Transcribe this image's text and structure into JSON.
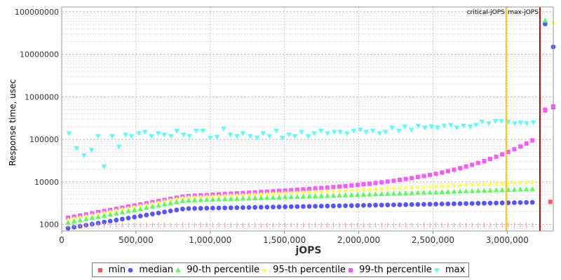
{
  "chart_data": {
    "type": "scatter",
    "title": "",
    "xlabel": "jOPS",
    "ylabel": "Response time, usec",
    "y_scale": "log",
    "xlim": [
      0,
      3310000
    ],
    "ylim": [
      700,
      130000000
    ],
    "x_ticks": [
      {
        "value": 0,
        "label": "0"
      },
      {
        "value": 500000,
        "label": "500,000"
      },
      {
        "value": 1000000,
        "label": "1,000,000"
      },
      {
        "value": 1500000,
        "label": "1,500,000"
      },
      {
        "value": 2000000,
        "label": "2,000,000"
      },
      {
        "value": 2500000,
        "label": "2,500,000"
      },
      {
        "value": 3000000,
        "label": "3,000,000"
      }
    ],
    "y_ticks": [
      {
        "value": 1000,
        "label": "1000"
      },
      {
        "value": 10000,
        "label": "10000"
      },
      {
        "value": 100000,
        "label": "100000"
      },
      {
        "value": 1000000,
        "label": "1000000"
      },
      {
        "value": 10000000,
        "label": "10000000"
      },
      {
        "value": 100000000,
        "label": "100000000"
      }
    ],
    "grid": true,
    "legend_position": "bottom",
    "markers": [
      {
        "label": "critical-jOPS",
        "x": 2993000,
        "color": "#ffc800"
      },
      {
        "label": "max-jOPS",
        "x": 3220000,
        "color": "#cc0000"
      }
    ],
    "series": [
      {
        "name": "min",
        "color": "#ff5555",
        "shape": "square",
        "points": [
          [
            3255000,
            480000
          ],
          [
            3310000,
            570000
          ],
          [
            3290000,
            3400
          ]
        ]
      },
      {
        "name": "median",
        "color": "#5555ff",
        "shape": "circle",
        "points": [
          [
            3255000,
            52000000
          ],
          [
            3310000,
            15000000
          ]
        ]
      },
      {
        "name": "90-th percentile",
        "color": "#55ff55",
        "shape": "triangle-up",
        "points": [
          [
            3255000,
            62000000
          ]
        ]
      },
      {
        "name": "95-th percentile",
        "color": "#ffff55",
        "shape": "diamond",
        "points": [
          [
            3310000,
            55000000
          ]
        ]
      },
      {
        "name": "99-th percentile",
        "color": "#ff55ff",
        "shape": "square",
        "points": [
          [
            3255000,
            500000
          ],
          [
            3310000,
            600000
          ]
        ]
      },
      {
        "name": "max",
        "color": "#55ffff",
        "shape": "triangle-down",
        "points": [
          [
            50000,
            140000
          ],
          [
            100000,
            62000
          ],
          [
            150000,
            42000
          ],
          [
            200000,
            57000
          ],
          [
            245000,
            120000
          ],
          [
            285000,
            23000
          ],
          [
            340000,
            120000
          ],
          [
            385000,
            68000
          ],
          [
            430000,
            130000
          ],
          [
            470000,
            120000
          ],
          [
            520000,
            140000
          ],
          [
            560000,
            150000
          ],
          [
            605000,
            120000
          ],
          [
            650000,
            140000
          ],
          [
            690000,
            130000
          ],
          [
            735000,
            120000
          ],
          [
            775000,
            160000
          ],
          [
            820000,
            130000
          ],
          [
            860000,
            120000
          ],
          [
            905000,
            160000
          ],
          [
            950000,
            160000
          ],
          [
            1000000,
            110000
          ],
          [
            1045000,
            115000
          ],
          [
            1090000,
            180000
          ],
          [
            1135000,
            130000
          ],
          [
            1180000,
            120000
          ],
          [
            1220000,
            140000
          ],
          [
            1270000,
            120000
          ],
          [
            1315000,
            110000
          ],
          [
            1355000,
            140000
          ],
          [
            1400000,
            120000
          ],
          [
            1445000,
            160000
          ],
          [
            1485000,
            110000
          ],
          [
            1530000,
            130000
          ],
          [
            1570000,
            120000
          ],
          [
            1615000,
            150000
          ],
          [
            1660000,
            120000
          ],
          [
            1700000,
            140000
          ],
          [
            1745000,
            160000
          ],
          [
            1790000,
            140000
          ],
          [
            1835000,
            150000
          ],
          [
            1875000,
            150000
          ],
          [
            1920000,
            140000
          ],
          [
            1965000,
            160000
          ],
          [
            2010000,
            170000
          ],
          [
            2050000,
            150000
          ],
          [
            2095000,
            160000
          ],
          [
            2140000,
            140000
          ],
          [
            2180000,
            150000
          ],
          [
            2225000,
            190000
          ],
          [
            2270000,
            160000
          ],
          [
            2310000,
            200000
          ],
          [
            2355000,
            170000
          ],
          [
            2400000,
            210000
          ],
          [
            2445000,
            190000
          ],
          [
            2490000,
            200000
          ],
          [
            2530000,
            190000
          ],
          [
            2575000,
            210000
          ],
          [
            2620000,
            220000
          ],
          [
            2660000,
            190000
          ],
          [
            2705000,
            210000
          ],
          [
            2750000,
            200000
          ],
          [
            2790000,
            220000
          ],
          [
            2830000,
            260000
          ],
          [
            2875000,
            240000
          ],
          [
            2920000,
            270000
          ],
          [
            2960000,
            270000
          ],
          [
            3005000,
            260000
          ],
          [
            3050000,
            240000
          ],
          [
            3090000,
            250000
          ],
          [
            3130000,
            240000
          ],
          [
            3175000,
            250000
          ]
        ]
      }
    ]
  }
}
